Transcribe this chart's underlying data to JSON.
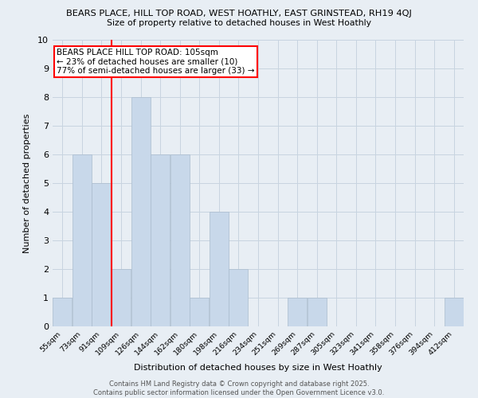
{
  "title1": "BEARS PLACE, HILL TOP ROAD, WEST HOATHLY, EAST GRINSTEAD, RH19 4QJ",
  "title2": "Size of property relative to detached houses in West Hoathly",
  "xlabel": "Distribution of detached houses by size in West Hoathly",
  "ylabel": "Number of detached properties",
  "bins": [
    "55sqm",
    "73sqm",
    "91sqm",
    "109sqm",
    "126sqm",
    "144sqm",
    "162sqm",
    "180sqm",
    "198sqm",
    "216sqm",
    "234sqm",
    "251sqm",
    "269sqm",
    "287sqm",
    "305sqm",
    "323sqm",
    "341sqm",
    "358sqm",
    "376sqm",
    "394sqm",
    "412sqm"
  ],
  "values": [
    1,
    6,
    5,
    2,
    8,
    6,
    6,
    1,
    4,
    2,
    0,
    0,
    1,
    1,
    0,
    0,
    0,
    0,
    0,
    0,
    1
  ],
  "bar_color": "#c8d8ea",
  "bar_edge_color": "#aabcce",
  "grid_color": "#c8d4e0",
  "vline_x": 2.5,
  "vline_color": "red",
  "annotation_text": "BEARS PLACE HILL TOP ROAD: 105sqm\n← 23% of detached houses are smaller (10)\n77% of semi-detached houses are larger (33) →",
  "annotation_box_color": "white",
  "annotation_box_edge": "red",
  "ylim": [
    0,
    10
  ],
  "yticks": [
    0,
    1,
    2,
    3,
    4,
    5,
    6,
    7,
    8,
    9,
    10
  ],
  "footnote": "Contains HM Land Registry data © Crown copyright and database right 2025.\nContains public sector information licensed under the Open Government Licence v3.0.",
  "bg_color": "#e8eef4"
}
